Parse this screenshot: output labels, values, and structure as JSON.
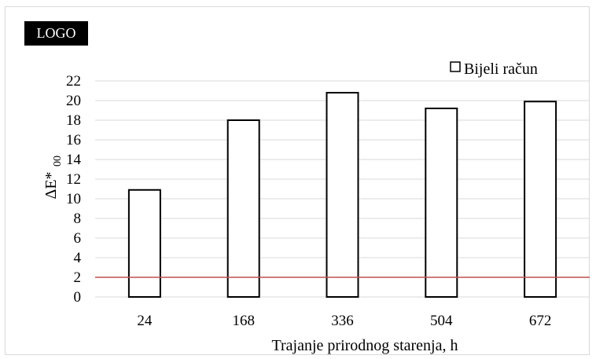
{
  "logo": {
    "text": "LOGO"
  },
  "chart_data": {
    "type": "bar",
    "categories": [
      "24",
      "168",
      "336",
      "504",
      "672"
    ],
    "series": [
      {
        "name": "Bijeli račun",
        "values": [
          10.9,
          18.0,
          20.8,
          19.2,
          19.9
        ],
        "color": "#ffffff",
        "stroke": "#000000"
      }
    ],
    "title": "",
    "xlabel": "Trajanje prirodnog starenja, h",
    "ylabel": {
      "main": "ΔE*",
      "subscript": "00"
    },
    "ylim": [
      0,
      22
    ],
    "yticks": [
      0,
      2,
      4,
      6,
      8,
      10,
      12,
      14,
      16,
      18,
      20,
      22
    ],
    "reference_line": {
      "y": 2,
      "color": "#c0504d"
    },
    "grid": true,
    "legend": "top-right"
  }
}
